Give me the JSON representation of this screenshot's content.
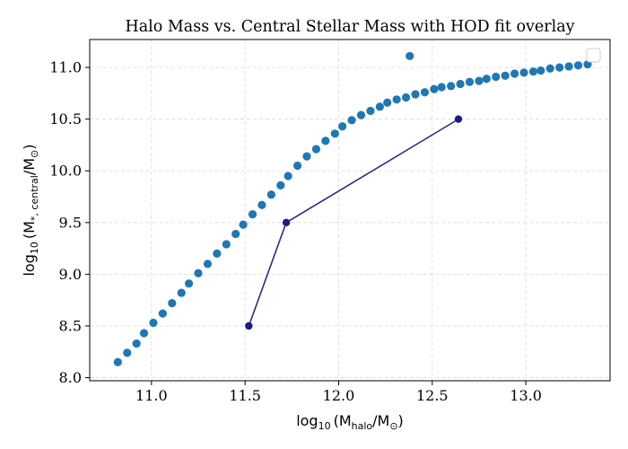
{
  "chart_data": {
    "type": "scatter",
    "title": "Halo Mass vs. Central Stellar Mass with HOD fit overlay",
    "xlabel": {
      "prefix": "log",
      "sub": "10",
      "body": "(M",
      "body_sub": "halo",
      "body2": "/M",
      "body2_sub": "⊙",
      "suffix": ")"
    },
    "ylabel": {
      "prefix": "log",
      "sub": "10",
      "body": "(M",
      "body_sub": "*, central",
      "body2": "/M",
      "body2_sub": "⊙",
      "suffix": ")"
    },
    "xlim": [
      10.67,
      13.45
    ],
    "ylim": [
      7.97,
      11.27
    ],
    "xticks": [
      11.0,
      11.5,
      12.0,
      12.5,
      13.0
    ],
    "xtick_labels": [
      "11.0",
      "11.5",
      "12.0",
      "12.5",
      "13.0"
    ],
    "yticks": [
      8.0,
      8.5,
      9.0,
      9.5,
      10.0,
      10.5,
      11.0
    ],
    "ytick_labels": [
      "8.0",
      "8.5",
      "9.0",
      "9.5",
      "10.0",
      "10.5",
      "11.0"
    ],
    "grid": true,
    "legend_placement": "top-right",
    "series": [
      {
        "kind": "scatter",
        "color": "#1f77b4",
        "points": [
          [
            10.82,
            8.15
          ],
          [
            10.87,
            8.24
          ],
          [
            10.92,
            8.33
          ],
          [
            10.96,
            8.43
          ],
          [
            11.01,
            8.53
          ],
          [
            11.06,
            8.62
          ],
          [
            11.11,
            8.72
          ],
          [
            11.16,
            8.82
          ],
          [
            11.2,
            8.91
          ],
          [
            11.25,
            9.01
          ],
          [
            11.3,
            9.1
          ],
          [
            11.35,
            9.2
          ],
          [
            11.4,
            9.29
          ],
          [
            11.45,
            9.39
          ],
          [
            11.49,
            9.48
          ],
          [
            11.54,
            9.58
          ],
          [
            11.59,
            9.67
          ],
          [
            11.64,
            9.77
          ],
          [
            11.69,
            9.86
          ],
          [
            11.73,
            9.95
          ],
          [
            11.78,
            10.05
          ],
          [
            11.83,
            10.14
          ],
          [
            11.88,
            10.21
          ],
          [
            11.93,
            10.29
          ],
          [
            11.98,
            10.36
          ],
          [
            12.02,
            10.43
          ],
          [
            12.07,
            10.49
          ],
          [
            12.12,
            10.54
          ],
          [
            12.17,
            10.58
          ],
          [
            12.22,
            10.62
          ],
          [
            12.26,
            10.66
          ],
          [
            12.31,
            10.69
          ],
          [
            12.36,
            10.71
          ],
          [
            12.38,
            11.11
          ],
          [
            12.41,
            10.74
          ],
          [
            12.46,
            10.76
          ],
          [
            12.51,
            10.79
          ],
          [
            12.55,
            10.81
          ],
          [
            12.6,
            10.82
          ],
          [
            12.65,
            10.84
          ],
          [
            12.7,
            10.86
          ],
          [
            12.75,
            10.87
          ],
          [
            12.79,
            10.89
          ],
          [
            12.84,
            10.91
          ],
          [
            12.89,
            10.92
          ],
          [
            12.94,
            10.94
          ],
          [
            12.99,
            10.95
          ],
          [
            13.04,
            10.96
          ],
          [
            13.08,
            10.97
          ],
          [
            13.13,
            10.99
          ],
          [
            13.18,
            11.0
          ],
          [
            13.23,
            11.01
          ],
          [
            13.28,
            11.02
          ],
          [
            13.33,
            11.03
          ]
        ]
      },
      {
        "kind": "line",
        "color": "#2b2b8f",
        "marker_color": "#1c1c86",
        "points": [
          [
            11.52,
            8.5
          ],
          [
            11.72,
            9.5
          ],
          [
            12.64,
            10.5
          ]
        ]
      }
    ]
  }
}
